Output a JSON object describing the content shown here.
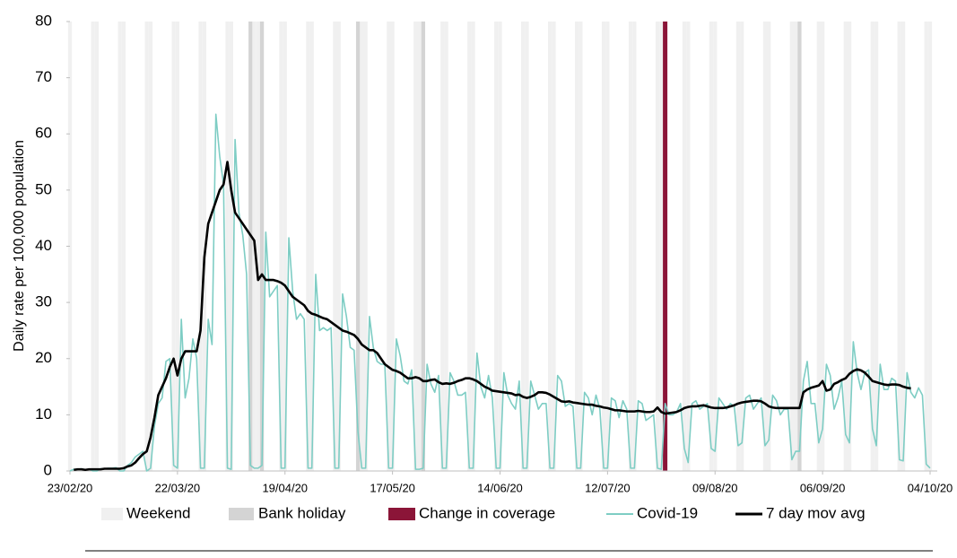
{
  "chart_data": {
    "type": "line",
    "y_label": "Daily rate per 100,000 population",
    "x": [
      "23/02/20",
      "24/02/20",
      "25/02/20",
      "26/02/20",
      "27/02/20",
      "28/02/20",
      "29/02/20",
      "01/03/20",
      "02/03/20",
      "03/03/20",
      "04/03/20",
      "05/03/20",
      "06/03/20",
      "07/03/20",
      "08/03/20",
      "09/03/20",
      "10/03/20",
      "11/03/20",
      "12/03/20",
      "13/03/20",
      "14/03/20",
      "15/03/20",
      "16/03/20",
      "17/03/20",
      "18/03/20",
      "19/03/20",
      "20/03/20",
      "21/03/20",
      "22/03/20",
      "23/03/20",
      "24/03/20",
      "25/03/20",
      "26/03/20",
      "27/03/20",
      "28/03/20",
      "29/03/20",
      "30/03/20",
      "31/03/20",
      "01/04/20",
      "02/04/20",
      "03/04/20",
      "04/04/20",
      "05/04/20",
      "06/04/20",
      "07/04/20",
      "08/04/20",
      "09/04/20",
      "10/04/20",
      "11/04/20",
      "12/04/20",
      "13/04/20",
      "14/04/20",
      "15/04/20",
      "16/04/20",
      "17/04/20",
      "18/04/20",
      "19/04/20",
      "20/04/20",
      "21/04/20",
      "22/04/20",
      "23/04/20",
      "24/04/20",
      "25/04/20",
      "26/04/20",
      "27/04/20",
      "28/04/20",
      "29/04/20",
      "30/04/20",
      "01/05/20",
      "02/05/20",
      "03/05/20",
      "04/05/20",
      "05/05/20",
      "06/05/20",
      "07/05/20",
      "08/05/20",
      "09/05/20",
      "10/05/20",
      "11/05/20",
      "12/05/20",
      "13/05/20",
      "14/05/20",
      "15/05/20",
      "16/05/20",
      "17/05/20",
      "18/05/20",
      "19/05/20",
      "20/05/20",
      "21/05/20",
      "22/05/20",
      "23/05/20",
      "24/05/20",
      "25/05/20",
      "26/05/20",
      "27/05/20",
      "28/05/20",
      "29/05/20",
      "30/05/20",
      "31/05/20",
      "01/06/20",
      "02/06/20",
      "03/06/20",
      "04/06/20",
      "05/06/20",
      "06/06/20",
      "07/06/20",
      "08/06/20",
      "09/06/20",
      "10/06/20",
      "11/06/20",
      "12/06/20",
      "13/06/20",
      "14/06/20",
      "15/06/20",
      "16/06/20",
      "17/06/20",
      "18/06/20",
      "19/06/20",
      "20/06/20",
      "21/06/20",
      "22/06/20",
      "23/06/20",
      "24/06/20",
      "25/06/20",
      "26/06/20",
      "27/06/20",
      "28/06/20",
      "29/06/20",
      "30/06/20",
      "01/07/20",
      "02/07/20",
      "03/07/20",
      "04/07/20",
      "05/07/20",
      "06/07/20",
      "07/07/20",
      "08/07/20",
      "09/07/20",
      "10/07/20",
      "11/07/20",
      "12/07/20",
      "13/07/20",
      "14/07/20",
      "15/07/20",
      "16/07/20",
      "17/07/20",
      "18/07/20",
      "19/07/20",
      "20/07/20",
      "21/07/20",
      "22/07/20",
      "23/07/20",
      "24/07/20",
      "25/07/20",
      "26/07/20",
      "27/07/20",
      "28/07/20",
      "29/07/20",
      "30/07/20",
      "31/07/20",
      "01/08/20",
      "02/08/20",
      "03/08/20",
      "04/08/20",
      "05/08/20",
      "06/08/20",
      "07/08/20",
      "08/08/20",
      "09/08/20",
      "10/08/20",
      "11/08/20",
      "12/08/20",
      "13/08/20",
      "14/08/20",
      "15/08/20",
      "16/08/20",
      "17/08/20",
      "18/08/20",
      "19/08/20",
      "20/08/20",
      "21/08/20",
      "22/08/20",
      "23/08/20",
      "24/08/20",
      "25/08/20",
      "26/08/20",
      "27/08/20",
      "28/08/20",
      "29/08/20",
      "30/08/20",
      "31/08/20",
      "01/09/20",
      "02/09/20",
      "03/09/20",
      "04/09/20",
      "05/09/20",
      "06/09/20",
      "07/09/20",
      "08/09/20",
      "09/09/20",
      "10/09/20",
      "11/09/20",
      "12/09/20",
      "13/09/20",
      "14/09/20",
      "15/09/20",
      "16/09/20",
      "17/09/20",
      "18/09/20",
      "19/09/20",
      "20/09/20",
      "21/09/20",
      "22/09/20",
      "23/09/20",
      "24/09/20",
      "25/09/20",
      "26/09/20",
      "27/09/20",
      "28/09/20",
      "29/09/20",
      "30/09/20",
      "01/10/20",
      "02/10/20",
      "03/10/20",
      "04/10/20"
    ],
    "series": [
      {
        "name": "Covid-19",
        "color": "#7ecdc4",
        "values": [
          0,
          0.3,
          0.3,
          0.4,
          0.2,
          0.3,
          0,
          0,
          0.4,
          0.4,
          0.5,
          0.5,
          0.6,
          0,
          0,
          1,
          1.5,
          2.5,
          3,
          3.5,
          0,
          0.5,
          8,
          12,
          13,
          19.5,
          20,
          1,
          0.5,
          27,
          13,
          16.5,
          23.5,
          20,
          0.5,
          0.5,
          27,
          22.5,
          63.5,
          56,
          51,
          0.5,
          0.3,
          59,
          46,
          42,
          35,
          1,
          0.5,
          0.5,
          1,
          42.5,
          31,
          32,
          33,
          0.5,
          0.5,
          41.5,
          32,
          27,
          28,
          27,
          0.5,
          0.5,
          35,
          25,
          25.5,
          25,
          25.5,
          0.5,
          0.5,
          31.5,
          27.5,
          22,
          21.5,
          7,
          0.5,
          0.5,
          27.5,
          22,
          19.5,
          19,
          19,
          0.5,
          0.5,
          23.5,
          20.5,
          16,
          15.5,
          18,
          0.3,
          0.3,
          0.5,
          19,
          15.5,
          14,
          17,
          0.5,
          0.5,
          17.5,
          16,
          13.5,
          13.5,
          14,
          0.5,
          0.5,
          21,
          15,
          13,
          17,
          13,
          0.5,
          0.5,
          17.5,
          13.5,
          12,
          11,
          16,
          0.5,
          0.5,
          16,
          13.5,
          11,
          12,
          12,
          0.5,
          0.5,
          17,
          16,
          11.5,
          12,
          11.5,
          0.5,
          0.5,
          14,
          13,
          10,
          13.5,
          11,
          0.5,
          0.5,
          13,
          12.5,
          9.5,
          12.5,
          11,
          0.5,
          0.5,
          12.5,
          12,
          9,
          9.5,
          10,
          0.5,
          0.3,
          12,
          10,
          10,
          10.5,
          12,
          4,
          1.5,
          12,
          12.5,
          11,
          11.5,
          12,
          4,
          3.5,
          13,
          12,
          11,
          12,
          11.5,
          4.5,
          5,
          13,
          13.5,
          11,
          12,
          13,
          4.5,
          5.5,
          13.5,
          12.5,
          10,
          11,
          11,
          2,
          3.5,
          3.5,
          16,
          19.5,
          12,
          12,
          5,
          7.5,
          19,
          17,
          11,
          13,
          16,
          6.5,
          5,
          23,
          17.5,
          14.5,
          17.5,
          18,
          7.5,
          4.5,
          19,
          14.5,
          14.5,
          16.5,
          16,
          2,
          1.8,
          17.5,
          14,
          13,
          14.8,
          13.5,
          1.2,
          0.5
        ]
      },
      {
        "name": "7 day mov avg",
        "color": "#000000",
        "values": [
          null,
          0.2,
          0.3,
          0.3,
          0.2,
          0.3,
          0.3,
          0.3,
          0.3,
          0.4,
          0.4,
          0.4,
          0.4,
          0.4,
          0.5,
          0.8,
          1,
          1.5,
          2.3,
          3,
          3.5,
          6,
          9.5,
          13.5,
          15,
          16.5,
          18.5,
          20,
          17,
          20,
          21.3,
          21.3,
          21.3,
          21.3,
          25,
          38,
          44,
          46,
          48,
          50,
          51,
          55,
          50,
          46,
          45,
          44,
          43,
          42,
          41,
          34,
          35,
          34,
          34,
          34,
          33.8,
          33.5,
          33,
          32,
          31,
          30.5,
          30,
          29.5,
          28.5,
          28,
          27.8,
          27.5,
          27.2,
          27,
          26.5,
          26,
          25.5,
          25,
          24.8,
          24.5,
          24.2,
          23.5,
          22.5,
          22,
          21.5,
          21.5,
          21,
          20,
          19,
          18.5,
          18,
          17.8,
          17.5,
          17,
          16.5,
          16.5,
          16.7,
          16.5,
          16,
          16,
          16.2,
          16.3,
          15.8,
          15.5,
          15.6,
          15.5,
          15.7,
          16,
          16.2,
          16.5,
          16.5,
          16.3,
          16,
          15.5,
          15,
          14.7,
          14.3,
          14.2,
          14.1,
          14,
          13.9,
          13.8,
          13.5,
          13.6,
          13.2,
          13,
          13.2,
          13.5,
          14,
          14,
          13.9,
          13.6,
          13.2,
          12.8,
          12.4,
          12.3,
          12.4,
          12.2,
          12.1,
          12,
          11.9,
          11.8,
          11.8,
          11.6,
          11.5,
          11.3,
          11.2,
          11,
          10.8,
          10.8,
          10.7,
          10.6,
          10.6,
          10.6,
          10.7,
          10.6,
          10.5,
          10.5,
          10.6,
          11.3,
          10.5,
          10.2,
          10.3,
          10.4,
          10.5,
          10.8,
          11.2,
          11.4,
          11.5,
          11.5,
          11.6,
          11.7,
          11.5,
          11.3,
          11.2,
          11.2,
          11.2,
          11.3,
          11.5,
          11.7,
          12,
          12.2,
          12.3,
          12.4,
          12.5,
          12.5,
          12.4,
          12,
          11.5,
          11.3,
          11.2,
          11.2,
          11.2,
          11.2,
          11.2,
          11.2,
          11.2,
          14,
          14.5,
          14.8,
          15,
          15.2,
          16,
          14.3,
          14.5,
          15.5,
          15.8,
          16.2,
          16.5,
          17.3,
          17.8,
          18.1,
          17.9,
          17.5,
          16.8,
          16,
          15.8,
          15.6,
          15.4,
          15.3,
          15.4,
          15.4,
          15.3,
          15,
          14.8,
          14.7,
          null,
          null,
          null,
          null,
          null
        ]
      }
    ],
    "xticks": [
      "23/02/20",
      "22/03/20",
      "19/04/20",
      "17/05/20",
      "14/06/20",
      "12/07/20",
      "09/08/20",
      "06/09/20",
      "04/10/20"
    ],
    "ylim": [
      0,
      80
    ],
    "yticks": [
      0,
      10,
      20,
      30,
      40,
      50,
      60,
      70,
      80
    ],
    "weekend": {
      "name": "Weekend",
      "color": "#f0f0f0"
    },
    "bank_holiday": {
      "name": "Bank holiday",
      "color": "#d4d4d4",
      "dates": [
        "10/04/20",
        "13/04/20",
        "08/05/20",
        "25/05/20",
        "31/08/20"
      ]
    },
    "coverage_change": {
      "name": "Change in coverage",
      "color": "#8b1538",
      "date": "27/07/20"
    }
  }
}
